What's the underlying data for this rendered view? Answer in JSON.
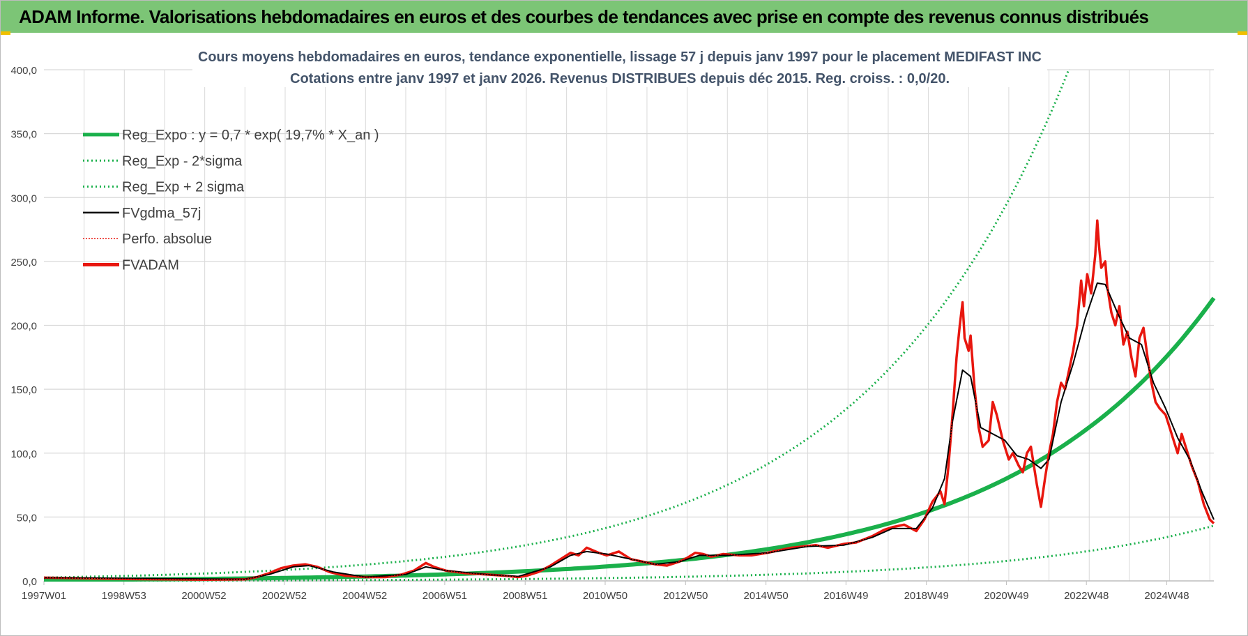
{
  "header": {
    "title": "ADAM Informe. Valorisations hebdomadaires en euros et des courbes de tendances avec prise en compte des revenus connus distribués"
  },
  "colors": {
    "header_bg": "#7cc576",
    "regression": "#1ab04b",
    "smoothed": "#000000",
    "adam": "#e8170f",
    "perfo": "#e8170f",
    "grid": "#d9d9d9",
    "title": "#44546a",
    "tick": "#404040"
  },
  "chart_data": {
    "type": "line",
    "title": "Cours moyens hebdomadaires en euros, tendance exponentielle, lissage 57 j depuis janv 1997 pour le placement MEDIFAST INC",
    "subtitle": "Cotations entre janv 1997 et janv 2026. Revenus DISTRIBUES depuis déc 2015. Reg. croiss. : 0,0/20.",
    "xlabel": "",
    "ylabel": "",
    "x_range": [
      1997.0,
      2026.1
    ],
    "ylim": [
      0,
      400
    ],
    "y_ticks": [
      "0,0",
      "50,0",
      "100,0",
      "150,0",
      "200,0",
      "250,0",
      "300,0",
      "350,0",
      "400,0"
    ],
    "x_ticks": [
      {
        "label": "1997W01",
        "x": 1997.0
      },
      {
        "label": "1998W53",
        "x": 1998.99
      },
      {
        "label": "2000W52",
        "x": 2000.98
      },
      {
        "label": "2002W52",
        "x": 2002.98
      },
      {
        "label": "2004W52",
        "x": 2004.98
      },
      {
        "label": "2006W51",
        "x": 2006.97
      },
      {
        "label": "2008W51",
        "x": 2008.97
      },
      {
        "label": "2010W50",
        "x": 2010.96
      },
      {
        "label": "2012W50",
        "x": 2012.96
      },
      {
        "label": "2014W50",
        "x": 2014.96
      },
      {
        "label": "2016W49",
        "x": 2016.95
      },
      {
        "label": "2018W49",
        "x": 2018.95
      },
      {
        "label": "2020W49",
        "x": 2020.94
      },
      {
        "label": "2022W48",
        "x": 2022.93
      },
      {
        "label": "2024W48",
        "x": 2024.93
      }
    ],
    "legend": [
      {
        "label": "Reg_Expo : y = 0,7 * exp( 19,7% *  X_an )",
        "style": "solid-thick",
        "color": "#1ab04b"
      },
      {
        "label": "Reg_Exp - 2*sigma",
        "style": "dotted",
        "color": "#1ab04b"
      },
      {
        "label": "Reg_Exp + 2 sigma",
        "style": "dotted",
        "color": "#1ab04b"
      },
      {
        "label": "FVgdma_57j",
        "style": "solid",
        "color": "#000000"
      },
      {
        "label": "Perfo. absolue",
        "style": "dotted-thin",
        "color": "#e8170f"
      },
      {
        "label": "FVADAM",
        "style": "solid-thick",
        "color": "#e8170f"
      }
    ],
    "legend_position": "top-left",
    "regression": {
      "coef": 0.7,
      "rate": 0.197,
      "x0": 1996.88,
      "upper_factor": 3.68,
      "lower_factor": 0.195
    },
    "series": [
      {
        "name": "FVADAM",
        "points": [
          [
            1997.0,
            2.5
          ],
          [
            1998.0,
            2
          ],
          [
            1999.0,
            1.5
          ],
          [
            2000.0,
            1.2
          ],
          [
            2001.0,
            1.0
          ],
          [
            2002.0,
            1.2
          ],
          [
            2002.3,
            3
          ],
          [
            2002.6,
            6
          ],
          [
            2002.9,
            10
          ],
          [
            2003.2,
            12
          ],
          [
            2003.5,
            13
          ],
          [
            2003.8,
            11
          ],
          [
            2004.1,
            7
          ],
          [
            2004.5,
            4
          ],
          [
            2005.0,
            3
          ],
          [
            2005.5,
            3
          ],
          [
            2005.9,
            5
          ],
          [
            2006.2,
            8
          ],
          [
            2006.5,
            14
          ],
          [
            2006.7,
            11
          ],
          [
            2007.0,
            8
          ],
          [
            2007.5,
            6
          ],
          [
            2008.0,
            5
          ],
          [
            2008.5,
            4
          ],
          [
            2008.8,
            3
          ],
          [
            2009.0,
            4
          ],
          [
            2009.3,
            7
          ],
          [
            2009.6,
            12
          ],
          [
            2009.9,
            18
          ],
          [
            2010.1,
            22
          ],
          [
            2010.3,
            20
          ],
          [
            2010.5,
            26
          ],
          [
            2010.8,
            22
          ],
          [
            2011.0,
            20
          ],
          [
            2011.3,
            23
          ],
          [
            2011.6,
            17
          ],
          [
            2011.9,
            15
          ],
          [
            2012.2,
            13
          ],
          [
            2012.5,
            12
          ],
          [
            2012.8,
            15
          ],
          [
            2013.0,
            18
          ],
          [
            2013.2,
            22
          ],
          [
            2013.4,
            21
          ],
          [
            2013.6,
            19
          ],
          [
            2013.9,
            21
          ],
          [
            2014.3,
            20
          ],
          [
            2014.6,
            20
          ],
          [
            2015.0,
            22
          ],
          [
            2015.3,
            24
          ],
          [
            2015.6,
            26
          ],
          [
            2015.9,
            27
          ],
          [
            2016.2,
            28
          ],
          [
            2016.5,
            26
          ],
          [
            2016.9,
            29
          ],
          [
            2017.2,
            30
          ],
          [
            2017.6,
            35
          ],
          [
            2017.9,
            40
          ],
          [
            2018.1,
            42
          ],
          [
            2018.4,
            44
          ],
          [
            2018.7,
            39
          ],
          [
            2018.9,
            48
          ],
          [
            2019.1,
            62
          ],
          [
            2019.3,
            70
          ],
          [
            2019.4,
            60
          ],
          [
            2019.5,
            90
          ],
          [
            2019.6,
            130
          ],
          [
            2019.7,
            175
          ],
          [
            2019.78,
            200
          ],
          [
            2019.85,
            218
          ],
          [
            2019.9,
            190
          ],
          [
            2020.0,
            180
          ],
          [
            2020.05,
            192
          ],
          [
            2020.15,
            150
          ],
          [
            2020.25,
            120
          ],
          [
            2020.35,
            105
          ],
          [
            2020.5,
            110
          ],
          [
            2020.6,
            140
          ],
          [
            2020.7,
            130
          ],
          [
            2020.85,
            110
          ],
          [
            2021.0,
            95
          ],
          [
            2021.1,
            100
          ],
          [
            2021.25,
            90
          ],
          [
            2021.35,
            85
          ],
          [
            2021.45,
            100
          ],
          [
            2021.55,
            105
          ],
          [
            2021.7,
            75
          ],
          [
            2021.8,
            58
          ],
          [
            2021.9,
            80
          ],
          [
            2022.0,
            100
          ],
          [
            2022.1,
            115
          ],
          [
            2022.2,
            140
          ],
          [
            2022.3,
            155
          ],
          [
            2022.4,
            150
          ],
          [
            2022.5,
            165
          ],
          [
            2022.6,
            180
          ],
          [
            2022.7,
            200
          ],
          [
            2022.8,
            235
          ],
          [
            2022.87,
            215
          ],
          [
            2022.95,
            240
          ],
          [
            2023.05,
            225
          ],
          [
            2023.15,
            255
          ],
          [
            2023.2,
            282
          ],
          [
            2023.25,
            260
          ],
          [
            2023.3,
            245
          ],
          [
            2023.4,
            250
          ],
          [
            2023.45,
            230
          ],
          [
            2023.55,
            210
          ],
          [
            2023.65,
            200
          ],
          [
            2023.75,
            215
          ],
          [
            2023.85,
            185
          ],
          [
            2023.95,
            195
          ],
          [
            2024.05,
            175
          ],
          [
            2024.15,
            160
          ],
          [
            2024.25,
            190
          ],
          [
            2024.35,
            198
          ],
          [
            2024.45,
            175
          ],
          [
            2024.55,
            155
          ],
          [
            2024.65,
            140
          ],
          [
            2024.75,
            135
          ],
          [
            2024.9,
            130
          ],
          [
            2025.0,
            120
          ],
          [
            2025.1,
            110
          ],
          [
            2025.2,
            100
          ],
          [
            2025.3,
            115
          ],
          [
            2025.4,
            105
          ],
          [
            2025.55,
            90
          ],
          [
            2025.7,
            78
          ],
          [
            2025.85,
            60
          ],
          [
            2026.0,
            48
          ],
          [
            2026.1,
            45
          ]
        ]
      },
      {
        "name": "FVgdma_57j",
        "points": [
          [
            1997.0,
            2.5
          ],
          [
            2002.0,
            1.3
          ],
          [
            2002.6,
            5
          ],
          [
            2003.2,
            11
          ],
          [
            2003.6,
            12
          ],
          [
            2004.2,
            7
          ],
          [
            2005.0,
            3
          ],
          [
            2006.0,
            5
          ],
          [
            2006.5,
            11
          ],
          [
            2007.0,
            8
          ],
          [
            2008.0,
            5
          ],
          [
            2008.8,
            3.5
          ],
          [
            2009.6,
            11
          ],
          [
            2010.1,
            20
          ],
          [
            2010.5,
            23
          ],
          [
            2011.0,
            21
          ],
          [
            2011.6,
            17
          ],
          [
            2012.2,
            13
          ],
          [
            2012.8,
            15
          ],
          [
            2013.3,
            20
          ],
          [
            2014.0,
            20
          ],
          [
            2015.0,
            22
          ],
          [
            2016.0,
            27
          ],
          [
            2016.9,
            28
          ],
          [
            2017.6,
            34
          ],
          [
            2018.1,
            41
          ],
          [
            2018.7,
            41
          ],
          [
            2019.1,
            57
          ],
          [
            2019.4,
            80
          ],
          [
            2019.6,
            125
          ],
          [
            2019.85,
            165
          ],
          [
            2020.05,
            160
          ],
          [
            2020.3,
            120
          ],
          [
            2020.6,
            115
          ],
          [
            2020.9,
            110
          ],
          [
            2021.2,
            98
          ],
          [
            2021.5,
            95
          ],
          [
            2021.8,
            88
          ],
          [
            2022.0,
            95
          ],
          [
            2022.3,
            140
          ],
          [
            2022.6,
            170
          ],
          [
            2022.9,
            205
          ],
          [
            2023.2,
            233
          ],
          [
            2023.4,
            232
          ],
          [
            2023.7,
            210
          ],
          [
            2024.0,
            190
          ],
          [
            2024.3,
            185
          ],
          [
            2024.6,
            155
          ],
          [
            2024.9,
            135
          ],
          [
            2025.2,
            112
          ],
          [
            2025.5,
            95
          ],
          [
            2025.8,
            70
          ],
          [
            2026.1,
            48
          ]
        ]
      }
    ]
  }
}
